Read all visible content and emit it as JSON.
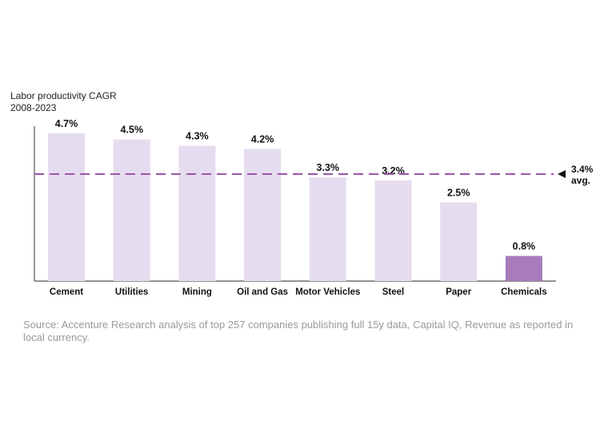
{
  "chart_data": {
    "type": "bar",
    "ylabel_line1": "Labor productivity CAGR",
    "ylabel_line2": "2008-2023",
    "categories": [
      "Cement",
      "Utilities",
      "Mining",
      "Oil and Gas",
      "Motor Vehicles",
      "Steel",
      "Paper",
      "Chemicals"
    ],
    "values": [
      4.7,
      4.5,
      4.3,
      4.2,
      3.3,
      3.2,
      2.5,
      0.8
    ],
    "value_labels": [
      "4.7%",
      "4.5%",
      "4.3%",
      "4.2%",
      "3.3%",
      "3.2%",
      "2.5%",
      "0.8%"
    ],
    "highlighted_category": "Chemicals",
    "ylim": [
      0,
      5
    ],
    "grid": false,
    "reference_line": {
      "value": 3.4,
      "label_value": "3.4%",
      "label_text": "avg.",
      "style": "dashed"
    },
    "colors": {
      "bar": "#e6dcef",
      "highlight": "#a77bbd",
      "avg_line": "#9b55a8",
      "axis": "#555555"
    }
  },
  "source": "Source: Accenture Research analysis of top 257 companies publishing full 15y data, Capital IQ, Revenue as reported in local currency."
}
